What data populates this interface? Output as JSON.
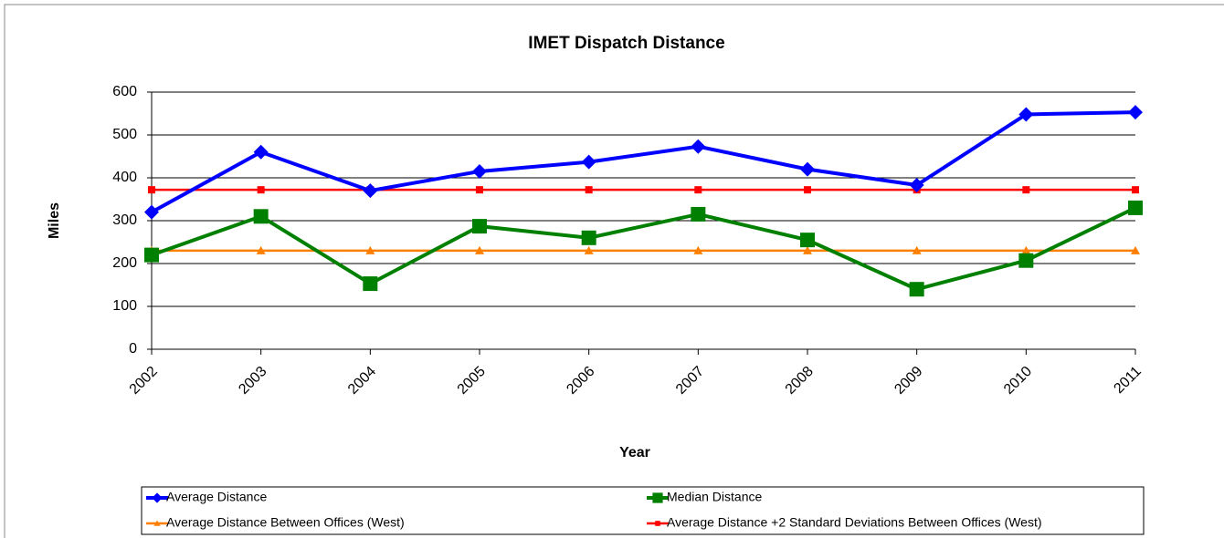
{
  "chart_data": {
    "type": "line",
    "title": "IMET Dispatch Distance",
    "xlabel": "Year",
    "ylabel": "Miles",
    "categories": [
      "2002",
      "2003",
      "2004",
      "2005",
      "2006",
      "2007",
      "2008",
      "2009",
      "2010",
      "2011"
    ],
    "series": [
      {
        "name": "Average Distance",
        "color": "#0000ff",
        "marker": "diamond",
        "values": [
          320,
          460,
          370,
          415,
          437,
          473,
          420,
          383,
          548,
          553
        ]
      },
      {
        "name": "Median Distance",
        "color": "#008000",
        "marker": "square",
        "values": [
          220,
          310,
          153,
          287,
          260,
          315,
          255,
          140,
          207,
          330
        ]
      },
      {
        "name": "Average Distance Between Offices (West)",
        "color": "#ff7f00",
        "marker": "triangle",
        "values": [
          230,
          230,
          230,
          230,
          230,
          230,
          230,
          230,
          230,
          230
        ]
      },
      {
        "name": "Average Distance +2 Standard Deviations Between Offices (West)",
        "color": "#ff0000",
        "marker": "small-square",
        "values": [
          372,
          372,
          372,
          372,
          372,
          372,
          372,
          372,
          372,
          372
        ]
      }
    ],
    "ylim": [
      0,
      600
    ],
    "yticks": [
      0,
      100,
      200,
      300,
      400,
      500,
      600
    ],
    "grid": true
  }
}
